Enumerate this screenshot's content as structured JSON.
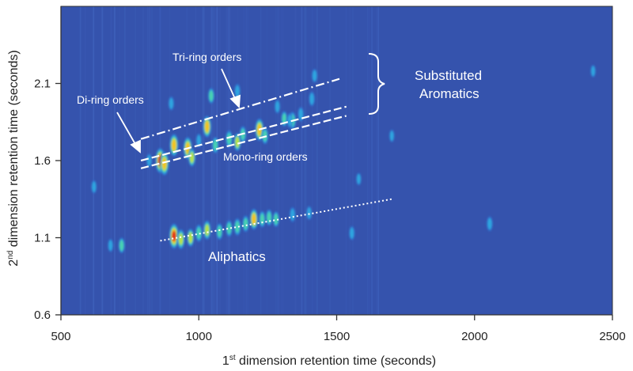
{
  "chart_data": {
    "type": "heatmap",
    "title": "",
    "xlabel": {
      "prefix": "1",
      "sup": "st",
      "rest": " dimension retention time (seconds)"
    },
    "ylabel": {
      "prefix": "2",
      "sup": "nd",
      "rest": " dimension retention time (seconds)"
    },
    "xlim": [
      500,
      2500
    ],
    "ylim": [
      0.6,
      2.6
    ],
    "xticks": [
      500,
      1000,
      1500,
      2000,
      2500
    ],
    "xtick_labels": [
      "500",
      "1000",
      "1500",
      "2000",
      "2500"
    ],
    "yticks": [
      0.6,
      1.1,
      1.6,
      2.1
    ],
    "ytick_labels": [
      "0.6",
      "1.1",
      "1.6",
      "2.1"
    ],
    "colormap": [
      "#3553ad",
      "#2f6fd0",
      "#2fa6e0",
      "#48d3b0",
      "#b9e33a",
      "#f4c21c",
      "#e2241b"
    ],
    "background_color": "#3553ad",
    "annotation_color": "#ffffff",
    "annotations": {
      "tri_ring": "Tri-ring orders",
      "di_ring": "Di-ring orders",
      "mono_ring": "Mono-ring orders",
      "aliphatics": "Aliphatics",
      "substituted_line1": "Substituted",
      "substituted_line2": "Aromatics"
    },
    "trend_lines": [
      {
        "name": "tri-ring",
        "style": "dash-dot",
        "x": [
          790,
          1510
        ],
        "y": [
          1.74,
          2.13
        ]
      },
      {
        "name": "di-ring",
        "style": "dashed",
        "x": [
          790,
          1535
        ],
        "y": [
          1.6,
          1.95
        ]
      },
      {
        "name": "mono-ring",
        "style": "dashed",
        "x": [
          790,
          1535
        ],
        "y": [
          1.55,
          1.89
        ]
      },
      {
        "name": "aliphatics",
        "style": "dotted",
        "x": [
          860,
          1700
        ],
        "y": [
          1.08,
          1.35
        ]
      }
    ],
    "peaks": [
      {
        "x": 860,
        "y": 1.6,
        "i": 1.0
      },
      {
        "x": 875,
        "y": 1.58,
        "i": 0.9
      },
      {
        "x": 910,
        "y": 1.7,
        "i": 0.85
      },
      {
        "x": 960,
        "y": 1.68,
        "i": 0.85
      },
      {
        "x": 975,
        "y": 1.62,
        "i": 0.6
      },
      {
        "x": 1030,
        "y": 1.82,
        "i": 0.8
      },
      {
        "x": 1060,
        "y": 1.7,
        "i": 0.5
      },
      {
        "x": 1110,
        "y": 1.74,
        "i": 0.55
      },
      {
        "x": 1140,
        "y": 1.72,
        "i": 0.6
      },
      {
        "x": 1160,
        "y": 1.77,
        "i": 0.5
      },
      {
        "x": 1220,
        "y": 1.8,
        "i": 0.85
      },
      {
        "x": 1240,
        "y": 1.76,
        "i": 0.5
      },
      {
        "x": 1310,
        "y": 1.87,
        "i": 0.45
      },
      {
        "x": 1340,
        "y": 1.86,
        "i": 0.55
      },
      {
        "x": 1370,
        "y": 1.9,
        "i": 0.4
      },
      {
        "x": 1410,
        "y": 2.0,
        "i": 0.4
      },
      {
        "x": 1420,
        "y": 2.15,
        "i": 0.35
      },
      {
        "x": 1045,
        "y": 2.02,
        "i": 0.45
      },
      {
        "x": 1140,
        "y": 2.05,
        "i": 0.4
      },
      {
        "x": 1285,
        "y": 1.95,
        "i": 0.35
      },
      {
        "x": 1330,
        "y": 1.86,
        "i": 0.4
      },
      {
        "x": 900,
        "y": 1.97,
        "i": 0.35
      },
      {
        "x": 820,
        "y": 1.6,
        "i": 0.35
      },
      {
        "x": 1000,
        "y": 1.73,
        "i": 0.35
      },
      {
        "x": 910,
        "y": 1.11,
        "i": 1.0
      },
      {
        "x": 935,
        "y": 1.09,
        "i": 0.7
      },
      {
        "x": 970,
        "y": 1.1,
        "i": 0.6
      },
      {
        "x": 1000,
        "y": 1.13,
        "i": 0.55
      },
      {
        "x": 1030,
        "y": 1.15,
        "i": 0.65
      },
      {
        "x": 1075,
        "y": 1.14,
        "i": 0.5
      },
      {
        "x": 1110,
        "y": 1.16,
        "i": 0.5
      },
      {
        "x": 1140,
        "y": 1.17,
        "i": 0.55
      },
      {
        "x": 1170,
        "y": 1.19,
        "i": 0.5
      },
      {
        "x": 1200,
        "y": 1.22,
        "i": 0.75
      },
      {
        "x": 1230,
        "y": 1.22,
        "i": 0.5
      },
      {
        "x": 1255,
        "y": 1.23,
        "i": 0.5
      },
      {
        "x": 1280,
        "y": 1.22,
        "i": 0.45
      },
      {
        "x": 1340,
        "y": 1.25,
        "i": 0.4
      },
      {
        "x": 1400,
        "y": 1.26,
        "i": 0.35
      },
      {
        "x": 1555,
        "y": 1.13,
        "i": 0.35
      },
      {
        "x": 2055,
        "y": 1.19,
        "i": 0.4
      },
      {
        "x": 720,
        "y": 1.05,
        "i": 0.45
      },
      {
        "x": 620,
        "y": 1.43,
        "i": 0.3
      },
      {
        "x": 680,
        "y": 1.05,
        "i": 0.3
      },
      {
        "x": 2430,
        "y": 2.18,
        "i": 0.25
      },
      {
        "x": 1580,
        "y": 1.48,
        "i": 0.25
      },
      {
        "x": 1700,
        "y": 1.76,
        "i": 0.25
      }
    ]
  }
}
